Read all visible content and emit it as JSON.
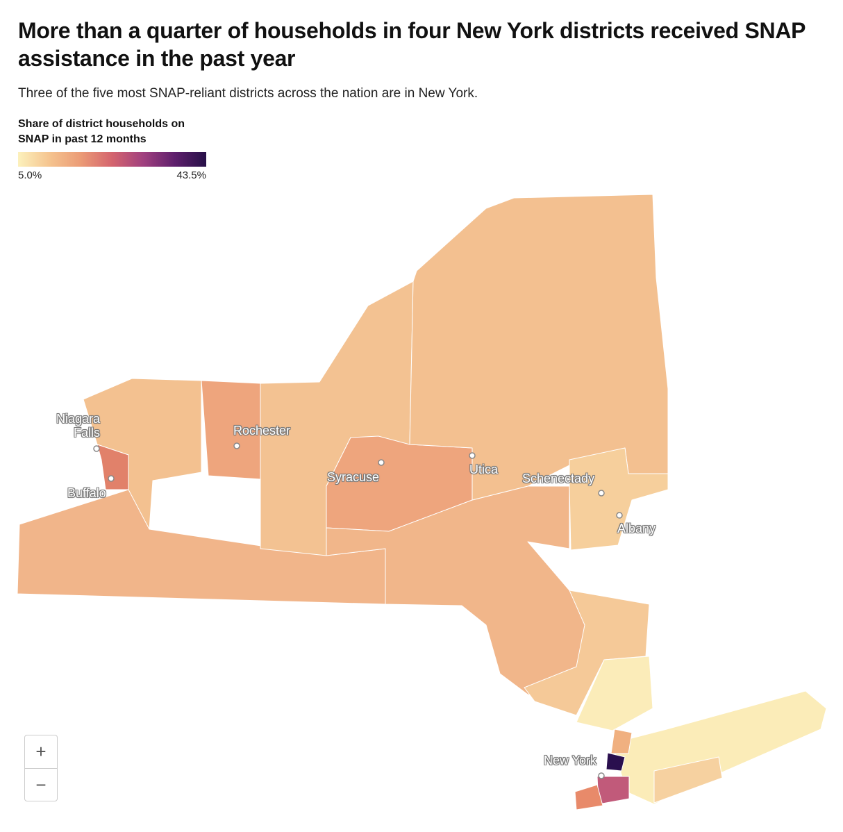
{
  "header": {
    "title": "More than a quarter of households in four New York districts received SNAP assistance in the past year",
    "subtitle": "Three of the five most SNAP-reliant districts across the nation are in New York."
  },
  "legend": {
    "title": "Share of district households on SNAP in past 12 months",
    "min_label": "5.0%",
    "max_label": "43.5%"
  },
  "cities": [
    {
      "label": "Niagara Falls"
    },
    {
      "label": "Buffalo"
    },
    {
      "label": "Rochester"
    },
    {
      "label": "Syracuse"
    },
    {
      "label": "Utica"
    },
    {
      "label": "Schenectady"
    },
    {
      "label": "Albany"
    },
    {
      "label": "New York"
    }
  ],
  "zoom": {
    "in": "+",
    "out": "−"
  }
}
